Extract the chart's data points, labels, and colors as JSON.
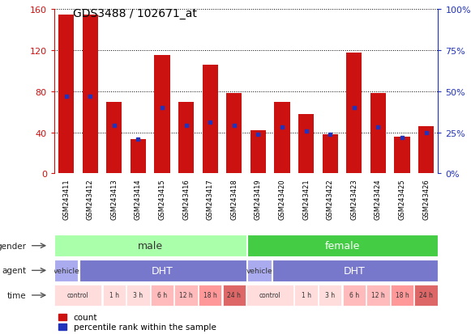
{
  "title": "GDS3488 / 102671_at",
  "samples": [
    "GSM243411",
    "GSM243412",
    "GSM243413",
    "GSM243414",
    "GSM243415",
    "GSM243416",
    "GSM243417",
    "GSM243418",
    "GSM243419",
    "GSM243420",
    "GSM243421",
    "GSM243422",
    "GSM243423",
    "GSM243424",
    "GSM243425",
    "GSM243426"
  ],
  "counts": [
    155,
    155,
    70,
    33,
    115,
    70,
    106,
    78,
    42,
    70,
    58,
    38,
    118,
    78,
    36,
    46
  ],
  "percentile_ranks": [
    47,
    47,
    29,
    21,
    40,
    29,
    31,
    29,
    24,
    28,
    26,
    24,
    40,
    28,
    22,
    25
  ],
  "ylim_left": [
    0,
    160
  ],
  "ylim_right": [
    0,
    100
  ],
  "yticks_left": [
    0,
    40,
    80,
    120,
    160
  ],
  "yticks_right": [
    0,
    25,
    50,
    75,
    100
  ],
  "bar_color": "#cc1111",
  "dot_color": "#2233bb",
  "background_color": "#ffffff",
  "axis_color_left": "#cc1111",
  "axis_color_right": "#2233bb",
  "male_color": "#aaffaa",
  "female_color": "#44cc44",
  "vehicle_color": "#aaaaee",
  "dht_color": "#7777cc",
  "time_colors": [
    "#ffdddd",
    "#ffdddd",
    "#ffdddd",
    "#ffbbbb",
    "#ffbbbb",
    "#ff9999",
    "#dd6666",
    "#dd6666",
    "#ffdddd",
    "#ffdddd",
    "#ffdddd",
    "#ffbbbb",
    "#ffbbbb",
    "#ff9999",
    "#dd6666",
    "#dd6666"
  ],
  "time_labels_per_col": [
    "control",
    "1 h",
    "3 h",
    "6 h",
    "12 h",
    "18 h",
    "24 h",
    "",
    "control",
    "1 h",
    "3 h",
    "6 h",
    "12 h",
    "18 h",
    "24 h",
    ""
  ],
  "note_time_male_control_span": 2,
  "note_time_female_control_span": 2
}
